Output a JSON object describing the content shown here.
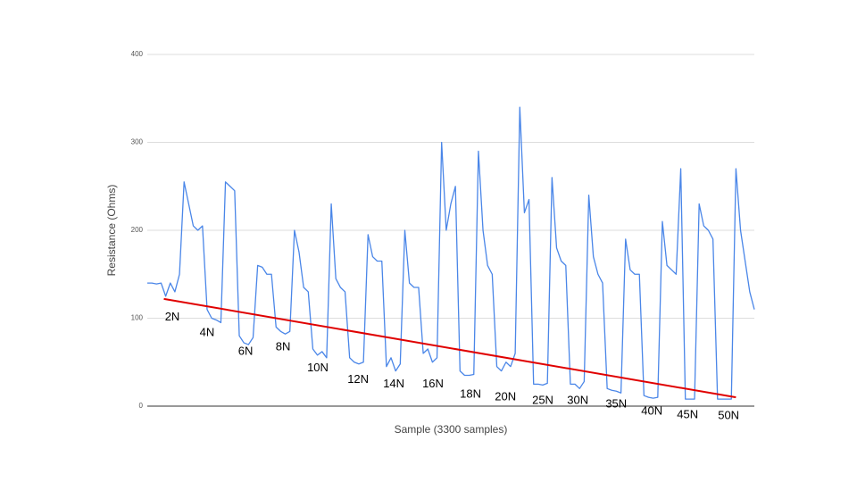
{
  "chart_data": {
    "type": "line",
    "xlabel": "Sample (3300 samples)",
    "ylabel": "Resistance (Ohms)",
    "xlim": [
      0,
      3300
    ],
    "ylim": [
      0,
      400
    ],
    "yticks": [
      0,
      100,
      200,
      300,
      400
    ],
    "grid": true,
    "series": [
      {
        "color": "#4a86e8",
        "x": [
          0,
          25,
          50,
          75,
          100,
          125,
          150,
          175,
          200,
          225,
          250,
          275,
          300,
          325,
          350,
          375,
          400,
          425,
          450,
          475,
          500,
          525,
          550,
          575,
          600,
          625,
          650,
          675,
          700,
          725,
          750,
          775,
          800,
          825,
          850,
          875,
          900,
          925,
          950,
          975,
          1000,
          1025,
          1050,
          1075,
          1100,
          1125,
          1150,
          1175,
          1200,
          1225,
          1250,
          1275,
          1300,
          1325,
          1350,
          1375,
          1400,
          1425,
          1450,
          1475,
          1500,
          1525,
          1550,
          1575,
          1600,
          1625,
          1650,
          1675,
          1700,
          1725,
          1750,
          1775,
          1800,
          1825,
          1850,
          1875,
          1900,
          1925,
          1950,
          1975,
          2000,
          2025,
          2050,
          2075,
          2100,
          2125,
          2150,
          2175,
          2200,
          2225,
          2250,
          2275,
          2300,
          2325,
          2350,
          2375,
          2400,
          2425,
          2450,
          2475,
          2500,
          2525,
          2550,
          2575,
          2600,
          2625,
          2650,
          2675,
          2700,
          2725,
          2750,
          2775,
          2800,
          2825,
          2850,
          2875,
          2900,
          2925,
          2950,
          2975,
          3000,
          3025,
          3050,
          3075,
          3100,
          3125,
          3150,
          3175,
          3200,
          3225,
          3250,
          3275,
          3300
        ],
        "values": [
          140,
          140,
          139,
          140,
          125,
          140,
          130,
          150,
          255,
          230,
          205,
          200,
          205,
          110,
          100,
          98,
          95,
          255,
          250,
          245,
          80,
          72,
          70,
          78,
          160,
          158,
          150,
          150,
          90,
          85,
          82,
          85,
          200,
          175,
          135,
          130,
          65,
          58,
          62,
          55,
          230,
          145,
          135,
          130,
          55,
          50,
          48,
          50,
          195,
          170,
          165,
          165,
          45,
          55,
          40,
          48,
          200,
          140,
          135,
          135,
          60,
          65,
          50,
          55,
          300,
          200,
          230,
          250,
          40,
          35,
          35,
          36,
          290,
          200,
          160,
          150,
          45,
          40,
          50,
          45,
          60,
          340,
          220,
          235,
          25,
          25,
          24,
          26,
          260,
          180,
          165,
          160,
          25,
          25,
          20,
          28,
          240,
          170,
          150,
          140,
          20,
          18,
          17,
          15,
          190,
          155,
          150,
          150,
          12,
          10,
          9,
          10,
          210,
          160,
          155,
          150,
          270,
          8,
          8,
          8,
          230,
          205,
          200,
          190,
          8,
          8,
          8,
          8,
          270,
          200,
          165,
          130,
          110
        ]
      }
    ],
    "trend_line": {
      "color": "#e00000",
      "x": [
        90,
        3200
      ],
      "y": [
        122,
        10
      ]
    },
    "annotations": [
      {
        "text": "2N",
        "x": 136,
        "y": 101
      },
      {
        "text": "4N",
        "x": 325,
        "y": 83
      },
      {
        "text": "6N",
        "x": 534,
        "y": 62
      },
      {
        "text": "8N",
        "x": 738,
        "y": 67
      },
      {
        "text": "10N",
        "x": 927,
        "y": 43
      },
      {
        "text": "12N",
        "x": 1146,
        "y": 30
      },
      {
        "text": "14N",
        "x": 1340,
        "y": 25
      },
      {
        "text": "16N",
        "x": 1553,
        "y": 25
      },
      {
        "text": "18N",
        "x": 1757,
        "y": 13
      },
      {
        "text": "20N",
        "x": 1947,
        "y": 10
      },
      {
        "text": "25N",
        "x": 2150,
        "y": 6
      },
      {
        "text": "30N",
        "x": 2340,
        "y": 6
      },
      {
        "text": "35N",
        "x": 2549,
        "y": 2
      },
      {
        "text": "40N",
        "x": 2743,
        "y": -6
      },
      {
        "text": "45N",
        "x": 2937,
        "y": -10
      },
      {
        "text": "50N",
        "x": 3160,
        "y": -11
      }
    ]
  }
}
